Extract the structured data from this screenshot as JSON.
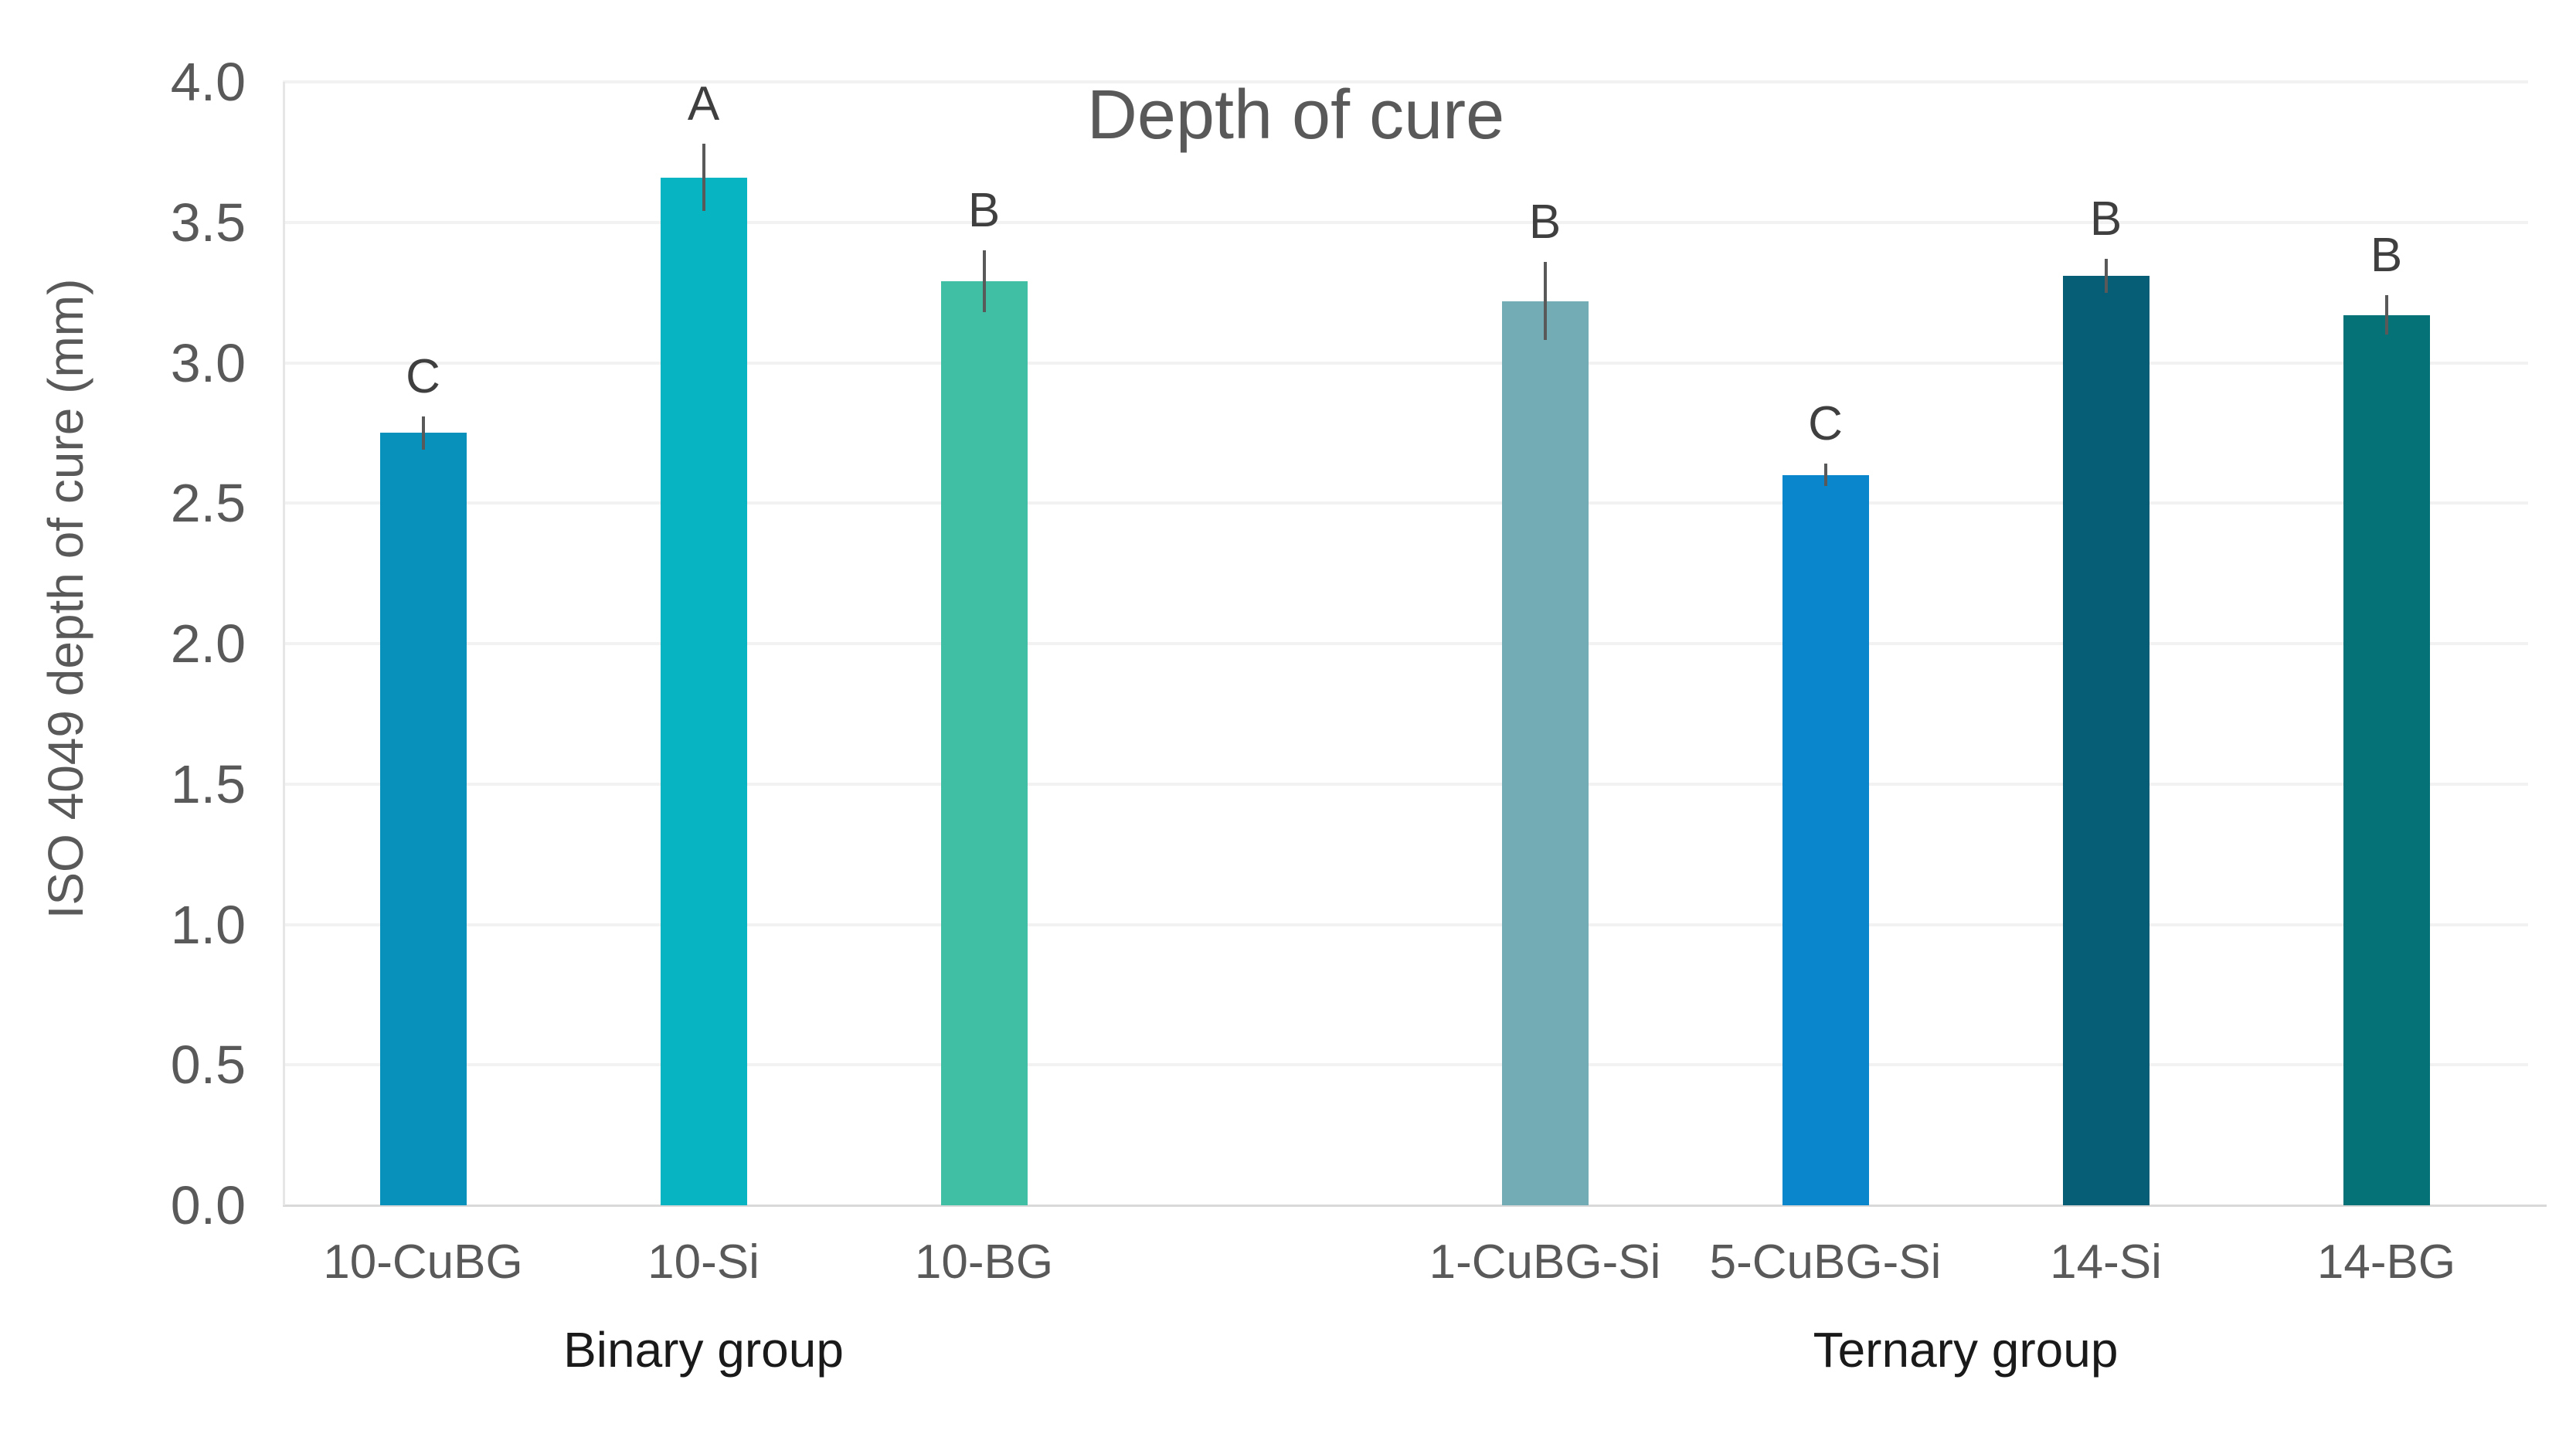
{
  "chart_data": {
    "type": "bar",
    "title": "Depth of cure",
    "xlabel": "",
    "ylabel": "ISO 4049 depth of cure (mm)",
    "ylim": [
      0.0,
      4.0
    ],
    "ytick_step": 0.5,
    "ytick_labels": [
      "4.0",
      "3.5",
      "3.0",
      "2.5",
      "2.0",
      "1.5",
      "1.0",
      "0.5",
      "0.0"
    ],
    "grid": "horizontal light-gray gridlines every 0.5, white background, no legend",
    "legend": "none",
    "categories": [
      "10-CuBG",
      "10-Si",
      "10-BG",
      "1-CuBG-Si",
      "5-CuBG-Si",
      "14-Si",
      "14-BG"
    ],
    "values": [
      2.75,
      3.66,
      3.29,
      3.22,
      2.6,
      3.31,
      3.17
    ],
    "errors": [
      0.06,
      0.12,
      0.11,
      0.14,
      0.04,
      0.06,
      0.07
    ],
    "significance_letters": [
      "C",
      "A",
      "B",
      "B",
      "C",
      "B",
      "B"
    ],
    "bar_colors": [
      "#0892BB",
      "#06B5C1",
      "#41BFA5",
      "#73ACB5",
      "#0A86CC",
      "#065D76",
      "#047277"
    ],
    "slots": [
      0,
      1,
      2,
      4,
      5,
      6,
      7
    ],
    "slots_total": 8,
    "groups": [
      {
        "label": "Binary group",
        "slot_start": 0,
        "slot_end": 2
      },
      {
        "label": "Ternary group",
        "slot_start": 4,
        "slot_end": 7
      }
    ],
    "error_bar_color": "#595959",
    "text_color": "#595959",
    "group_label_color": "#1a1a1a"
  }
}
